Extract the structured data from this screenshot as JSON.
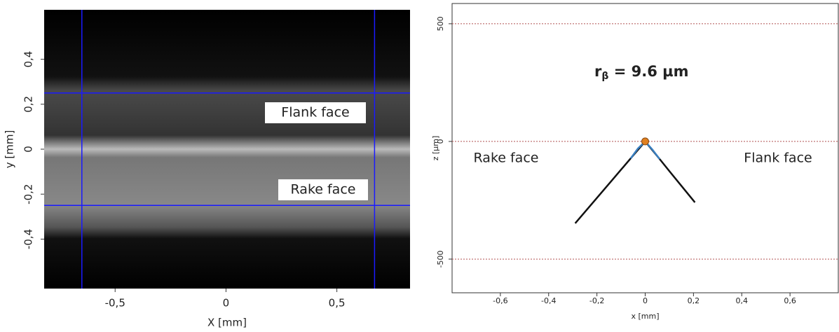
{
  "chart_data": [
    {
      "type": "image",
      "xlabel": "X [mm]",
      "ylabel": "y [mm]",
      "xlim": [
        -0.82,
        0.83
      ],
      "ylim": [
        -0.62,
        0.62
      ],
      "xticks": [
        {
          "value": -0.5,
          "label": "-0,5"
        },
        0,
        {
          "value": 0.5,
          "label": "0,5"
        }
      ],
      "yticks": [
        {
          "value": 0.4,
          "label": "0,4"
        },
        {
          "value": 0.2,
          "label": "0,2"
        },
        0,
        {
          "value": -0.2,
          "label": "-0,2"
        },
        {
          "value": -0.4,
          "label": "-0,4"
        }
      ],
      "vlines": [
        -0.65,
        0.67
      ],
      "hlines": [
        0.25,
        -0.25
      ],
      "line_color": "#1a1aff",
      "annotations": [
        "Flank face",
        "Rake face"
      ]
    },
    {
      "type": "line",
      "xlabel": "x [mm]",
      "ylabel": "z [µm]",
      "xlim": [
        -0.8,
        0.8
      ],
      "ylim": [
        -643,
        586
      ],
      "xticks": [
        {
          "value": -0.6,
          "label": "-0,6"
        },
        {
          "value": -0.4,
          "label": "-0,4"
        },
        {
          "value": -0.2,
          "label": "-0,2"
        },
        0,
        {
          "value": 0.2,
          "label": "0,2"
        },
        {
          "value": 0.4,
          "label": "0,4"
        },
        {
          "value": 0.6,
          "label": "0,6"
        }
      ],
      "yticks": [
        500,
        0,
        -500
      ],
      "grid_color": "#b05050",
      "series": [
        {
          "color": "#111111",
          "x": [
            -0.29,
            -0.2,
            -0.1,
            -0.06,
            0,
            0.06,
            0.1,
            0.206
          ],
          "values": [
            -348,
            -240,
            -120,
            -72,
            0,
            -75,
            -126,
            -259
          ]
        },
        {
          "color": "#3a7fc0",
          "x": [
            -0.06,
            -0.03,
            0,
            0.03,
            0.06
          ],
          "values": [
            -72,
            -30,
            0,
            -35,
            -75
          ]
        }
      ],
      "marker": {
        "color": "#e08020",
        "x": 0,
        "value": 0
      },
      "radius_label": {
        "symbol": "r",
        "subscript": "β",
        "text": " = 9.6 µm"
      },
      "annotations": [
        "Rake face",
        "Flank face"
      ]
    }
  ]
}
